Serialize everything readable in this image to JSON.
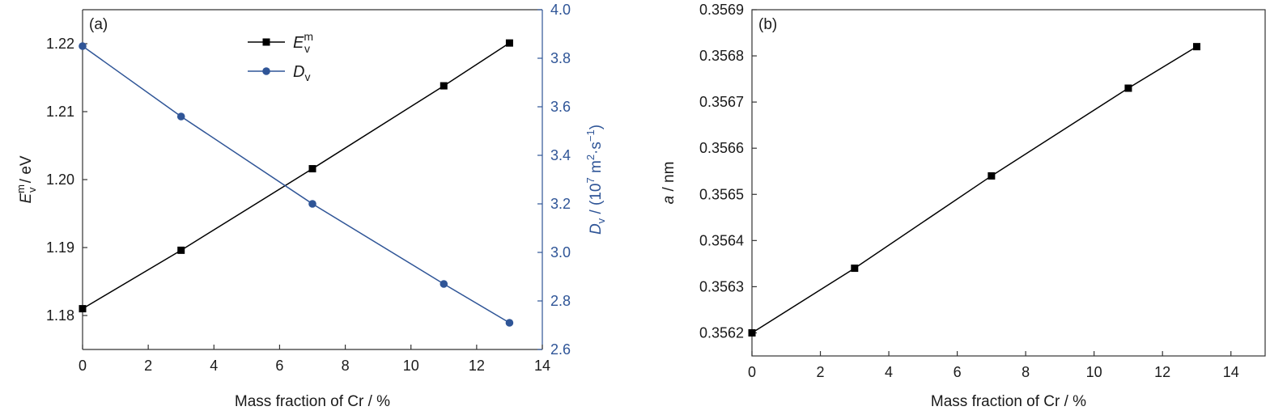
{
  "chart_data": [
    {
      "type": "line",
      "panel_label": "(a)",
      "xlabel": "Mass fraction of Cr / %",
      "xlim": [
        0,
        14
      ],
      "x_ticks": [
        "0",
        "2",
        "4",
        "6",
        "8",
        "10",
        "12",
        "14"
      ],
      "ylabel_left": {
        "base": "E",
        "sub": "v",
        "sup": "m",
        "rest": " / eV"
      },
      "ylim_left": [
        1.175,
        1.225
      ],
      "y_ticks_left": [
        "1.18",
        "1.19",
        "1.20",
        "1.21",
        "1.22"
      ],
      "ylabel_right": {
        "base": "D",
        "sub": "v",
        "mid": " / (10",
        "sup1": "7",
        "mid2": " m",
        "sup2": "2",
        "mid3": "·s",
        "sup3": "−1",
        "end": ")"
      },
      "ylim_right": [
        2.6,
        4.0
      ],
      "y_ticks_right": [
        "2.6",
        "2.8",
        "3.0",
        "3.2",
        "3.4",
        "3.6",
        "3.8",
        "4.0"
      ],
      "legend_position": "top-center",
      "series": [
        {
          "legend": {
            "base": "E",
            "sub": "v",
            "sup": "m"
          },
          "axis": "left",
          "marker": "square",
          "color": "#000000",
          "x": [
            0,
            3,
            7,
            11,
            13
          ],
          "values": [
            1.181,
            1.1896,
            1.2016,
            1.2138,
            1.2201
          ]
        },
        {
          "legend": {
            "base": "D",
            "sub": "v"
          },
          "axis": "right",
          "marker": "circle",
          "color": "#2f5597",
          "x": [
            0,
            3,
            7,
            11,
            13
          ],
          "values": [
            3.85,
            3.56,
            3.2,
            2.87,
            2.71
          ]
        }
      ]
    },
    {
      "type": "line",
      "panel_label": "(b)",
      "xlabel": "Mass fraction of Cr / %",
      "xlim": [
        0,
        15
      ],
      "x_ticks": [
        "0",
        "2",
        "4",
        "6",
        "8",
        "10",
        "12",
        "14"
      ],
      "ylabel": {
        "italic": "a",
        "rest": " / nm"
      },
      "ylim": [
        0.35615,
        0.3569
      ],
      "y_ticks": [
        "0.3562",
        "0.3563",
        "0.3564",
        "0.3565",
        "0.3566",
        "0.3567",
        "0.3568",
        "0.3569"
      ],
      "series": [
        {
          "marker": "square",
          "color": "#000000",
          "x": [
            0,
            3,
            7,
            11,
            13
          ],
          "values": [
            0.3562,
            0.35634,
            0.35654,
            0.35673,
            0.35682
          ]
        }
      ]
    }
  ]
}
